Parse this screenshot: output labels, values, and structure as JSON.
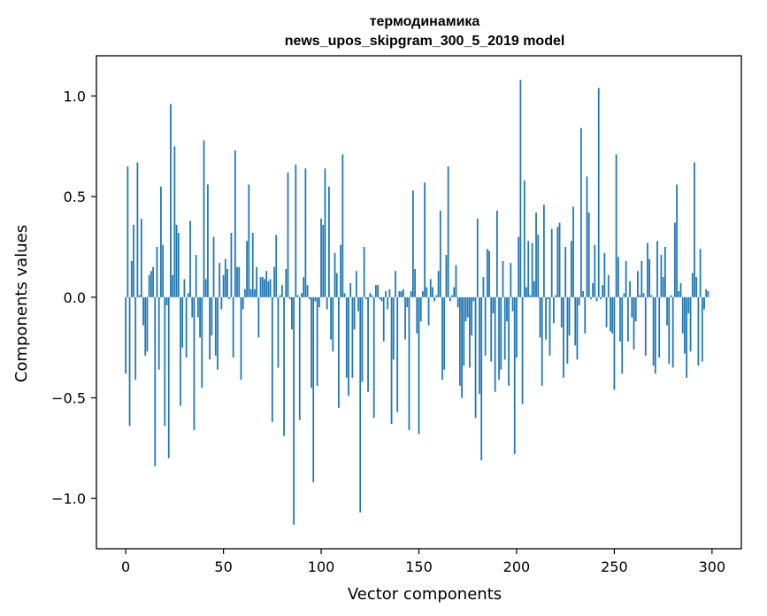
{
  "chart_data": {
    "type": "bar",
    "title": [
      "термодинамика",
      "news_upos_skipgram_300_5_2019 model"
    ],
    "xlabel": "Vector components",
    "ylabel": "Components values",
    "xlim": [
      -15,
      315
    ],
    "ylim": [
      -1.25,
      1.2
    ],
    "xticks": [
      0,
      50,
      100,
      150,
      200,
      250,
      300
    ],
    "yticks": [
      -1.0,
      -0.5,
      0.0,
      0.5,
      1.0
    ],
    "xtick_labels": [
      "0",
      "50",
      "100",
      "150",
      "200",
      "250",
      "300"
    ],
    "ytick_labels": [
      "−1.0",
      "−0.5",
      "0.0",
      "0.5",
      "1.0"
    ],
    "bar_color": "#1f77b4",
    "grid": false,
    "legend": "none",
    "values": [
      -0.38,
      0.65,
      -0.64,
      0.18,
      0.36,
      -0.41,
      0.67,
      0.01,
      0.39,
      -0.14,
      -0.29,
      -0.27,
      0.11,
      0.13,
      0.15,
      -0.84,
      0.25,
      -0.36,
      0.55,
      0.26,
      -0.64,
      -0.04,
      -0.8,
      0.96,
      0.11,
      0.75,
      0.36,
      0.32,
      -0.54,
      -0.25,
      0.09,
      -0.3,
      0.02,
      0.38,
      -0.1,
      -0.66,
      0.21,
      -0.1,
      -0.2,
      -0.45,
      0.78,
      0.09,
      0.56,
      -0.31,
      -0.19,
      0.3,
      -0.29,
      -0.36,
      0.17,
      -0.06,
      0.11,
      0.19,
      0.14,
      -0.01,
      0.32,
      -0.3,
      0.73,
      0.15,
      0.15,
      -0.41,
      -0.06,
      0.04,
      0.28,
      0.56,
      0.04,
      0.32,
      0.04,
      0.15,
      -0.2,
      0.1,
      0.1,
      0.09,
      0.13,
      0.08,
      0.09,
      -0.62,
      0.15,
      0.31,
      -0.35,
      0.01,
      0.06,
      -0.69,
      0.14,
      0.62,
      -0.01,
      -0.16,
      -1.13,
      0.66,
      0.01,
      -0.61,
      0.02,
      0.1,
      0.64,
      0.06,
      -0.01,
      -0.45,
      -0.92,
      -0.02,
      -0.44,
      -0.05,
      0.39,
      0.36,
      0.64,
      -0.06,
      0.55,
      -0.21,
      -0.27,
      0.22,
      0.12,
      -0.55,
      0.26,
      0.71,
      0.02,
      -0.4,
      -0.49,
      0.07,
      -0.4,
      -0.16,
      0.13,
      -0.07,
      -1.07,
      -0.42,
      0.25,
      -0.01,
      -0.47,
      0.02,
      0.01,
      -0.6,
      0.06,
      0.06,
      -0.01,
      -0.02,
      -0.22,
      0.03,
      -0.06,
      0.04,
      -0.63,
      -0.31,
      0.13,
      -0.57,
      0.03,
      0.03,
      0.04,
      -0.21,
      -0.05,
      -0.66,
      0.03,
      0.53,
      0.14,
      -0.18,
      -0.68,
      -0.12,
      0.03,
      0.57,
      0.05,
      -0.14,
      0.09,
      0.05,
      -0.02,
      0.01,
      0.13,
      0.43,
      -0.41,
      -0.36,
      0.21,
      0.65,
      -0.02,
      0.01,
      0.05,
      0.16,
      -0.05,
      -0.44,
      -0.5,
      -0.34,
      -0.12,
      -0.1,
      -0.35,
      -0.19,
      -0.02,
      -0.6,
      0.39,
      -0.48,
      -0.81,
      0.1,
      -0.29,
      0.24,
      0.23,
      -0.32,
      -0.08,
      -0.47,
      0.43,
      -0.41,
      -0.36,
      0.18,
      -0.31,
      -0.12,
      -0.44,
      0.17,
      -0.07,
      -0.78,
      -0.3,
      0.3,
      1.08,
      -0.53,
      0.58,
      0.05,
      0.28,
      0.01,
      0.27,
      0.08,
      0.42,
      0.31,
      -0.2,
      -0.44,
      0.46,
      -0.21,
      -0.01,
      -0.29,
      0.34,
      -0.13,
      0.01,
      0.35,
      0.37,
      -0.15,
      -0.4,
      0.25,
      -0.33,
      -0.19,
      0.28,
      0.45,
      -0.24,
      -0.31,
      -0.04,
      0.84,
      0.03,
      -0.18,
      0.6,
      0.42,
      -0.01,
      0.07,
      0.26,
      -0.02,
      1.04,
      -0.01,
      0.06,
      0.22,
      -0.15,
      0.11,
      -0.17,
      -0.18,
      -0.46,
      0.71,
      0.2,
      -0.22,
      -0.38,
      0.02,
      0.18,
      -0.22,
      0.08,
      -0.1,
      -0.26,
      -0.12,
      0.13,
      0.01,
      0.18,
      0.02,
      -0.29,
      0.27,
      0.19,
      0.01,
      -0.34,
      -0.38,
      0.28,
      -0.3,
      0.21,
      0.1,
      0.25,
      -0.14,
      -0.33,
      0.01,
      -0.35,
      0.37,
      0.56,
      0.03,
      0.07,
      -0.18,
      -0.28,
      -0.4,
      -0.08,
      -0.27,
      0.12,
      0.67,
      0.1,
      -0.34,
      0.24,
      -0.32,
      -0.06,
      0.04,
      0.03
    ]
  }
}
